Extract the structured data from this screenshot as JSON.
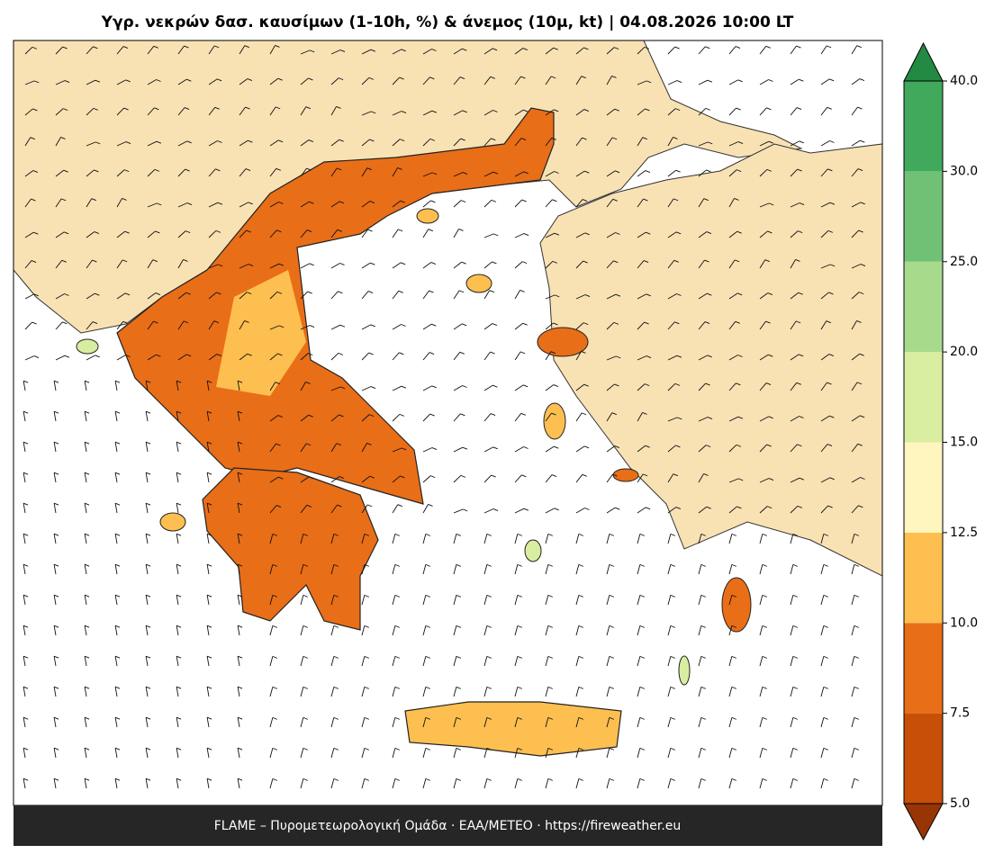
{
  "title": "Υγρ. νεκρών δασ. καυσίμων (1-10h, %) & άνεμος (10μ, kt)  |  04.08.2026 10:00 LT",
  "footer": "FLAME – Πυρομετεωρολογική Ομάδα · ΕΑΑ/METEO · https://fireweather.eu",
  "colorbar": {
    "ticks": [
      {
        "value": 5,
        "label": "5.0"
      },
      {
        "value": 7.5,
        "label": "7.5"
      },
      {
        "value": 10,
        "label": "10.0"
      },
      {
        "value": 12.5,
        "label": "12.5"
      },
      {
        "value": 15,
        "label": "15.0"
      },
      {
        "value": 20,
        "label": "20.0"
      },
      {
        "value": 25,
        "label": "25.0"
      },
      {
        "value": 30,
        "label": "30.0"
      },
      {
        "value": 40,
        "label": "40.0"
      }
    ],
    "colors": [
      "#c84f07",
      "#e96e18",
      "#fdbf50",
      "#fff5be",
      "#d8eda0",
      "#a8da8b",
      "#70c176",
      "#40a95c"
    ],
    "under_color": "#983505",
    "over_color": "#238a44"
  }
}
